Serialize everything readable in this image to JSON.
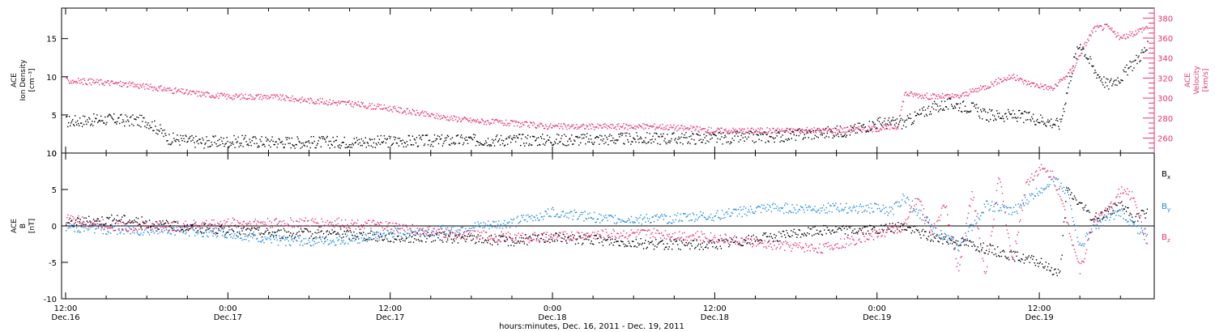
{
  "colors": {
    "black": "#000000",
    "pink": "#e8336b",
    "blue": "#1e88e5"
  },
  "top_panel": {
    "left_axis_label": [
      "ACE",
      "Ion Density",
      "[cm⁻³]"
    ],
    "right_axis_label": [
      "ACE",
      "Velocity",
      "[km/s]"
    ],
    "left_ticks": [
      "0",
      "5",
      "10",
      "15"
    ],
    "right_ticks": [
      "260",
      "280",
      "300",
      "320",
      "340",
      "360",
      "380"
    ]
  },
  "bottom_panel": {
    "axis_label": [
      "ACE",
      "B",
      "[nT]"
    ],
    "ticks": [
      "-10",
      "-5",
      "0",
      "5",
      "10"
    ],
    "legend": [
      {
        "label": "B",
        "sub": "x",
        "color": "#000000"
      },
      {
        "label": "B",
        "sub": "y",
        "color": "#1e88e5"
      },
      {
        "label": "B",
        "sub": "z",
        "color": "#e8336b"
      }
    ]
  },
  "x_axis": {
    "ticks": [
      {
        "time": "12:00",
        "day": "Dec.16"
      },
      {
        "time": "0:00",
        "day": "Dec.17"
      },
      {
        "time": "12:00",
        "day": "Dec.17"
      },
      {
        "time": "0:00",
        "day": "Dec.18"
      },
      {
        "time": "12:00",
        "day": "Dec.18"
      },
      {
        "time": "0:00",
        "day": "Dec.19"
      },
      {
        "time": "12:00",
        "day": "Dec.19"
      }
    ],
    "title": "hours:minutes, Dec. 16, 2011 - Dec. 19, 2011"
  },
  "chart_data": [
    {
      "type": "scatter",
      "panel": "top",
      "x_unit": "hours since 12:00 Dec.16, 2011",
      "xlim": [
        -0.3,
        80.5
      ],
      "left_ylim": [
        0,
        19
      ],
      "right_ylim": [
        245,
        390
      ],
      "series": [
        {
          "axis": "left",
          "color": "#000000",
          "x": [
            0,
            3,
            6,
            7,
            7.5,
            10,
            13,
            16,
            20,
            24,
            28,
            33,
            36,
            40,
            44,
            48,
            52,
            55,
            58,
            60,
            62,
            64,
            65.5,
            67,
            68,
            70,
            72,
            73.5,
            74.5,
            75,
            76,
            77,
            78,
            79,
            80
          ],
          "y": [
            4.2,
            4.5,
            4.2,
            3.0,
            2.0,
            1.5,
            1.6,
            1.5,
            1.5,
            1.6,
            1.7,
            1.8,
            1.8,
            1.9,
            2.0,
            2.0,
            2.2,
            2.6,
            3.0,
            4.0,
            4.0,
            6.0,
            6.5,
            6.0,
            5.0,
            5.0,
            4.5,
            3.8,
            12.0,
            14.5,
            11.0,
            9.0,
            10.0,
            12.0,
            14.0
          ]
        },
        {
          "axis": "right",
          "color": "#e8336b",
          "x": [
            0,
            3,
            6,
            9,
            12,
            15,
            18,
            21,
            24,
            27,
            30,
            33,
            36,
            40,
            44,
            48,
            52,
            56,
            60,
            61.5,
            62,
            64,
            66,
            68,
            69,
            70,
            71,
            73,
            74.5,
            75,
            76,
            77,
            78,
            80
          ],
          "y": [
            318,
            316,
            312,
            306,
            302,
            302,
            298,
            295,
            290,
            283,
            278,
            275,
            272,
            272,
            272,
            268,
            268,
            268,
            270,
            272,
            305,
            302,
            302,
            312,
            318,
            322,
            316,
            310,
            330,
            345,
            370,
            372,
            360,
            372
          ]
        }
      ]
    },
    {
      "type": "scatter",
      "panel": "bottom",
      "x_unit": "hours since 12:00 Dec.16, 2011",
      "xlim": [
        -0.3,
        80.5
      ],
      "ylim": [
        -10,
        10
      ],
      "series": [
        {
          "color": "#000000",
          "x": [
            0,
            4,
            8,
            12,
            16,
            20,
            24,
            28,
            33,
            36,
            40,
            44,
            48,
            52,
            56,
            60,
            62,
            64,
            66,
            68,
            70,
            72,
            73.5,
            74,
            75,
            76,
            77,
            78,
            79,
            80
          ],
          "y": [
            0.5,
            1.0,
            0,
            -0.5,
            -1.0,
            -1.0,
            -1.5,
            -1.5,
            -2.0,
            -1.5,
            -2.0,
            -2.5,
            -2.5,
            -1.5,
            -0.5,
            -0.5,
            0,
            -1.5,
            -2.0,
            -3.0,
            -4.0,
            -5.0,
            -6.5,
            5.0,
            3.0,
            1.0,
            2.0,
            3.0,
            1.0,
            2.0
          ]
        },
        {
          "color": "#1e88e5",
          "x": [
            0,
            4,
            8,
            12,
            16,
            20,
            24,
            28,
            33,
            36,
            38,
            40,
            44,
            48,
            52,
            56,
            60,
            61,
            62,
            64,
            66,
            68,
            70,
            72,
            73,
            74,
            75,
            76,
            77,
            78,
            79,
            80
          ],
          "y": [
            0,
            -0.5,
            -0.5,
            -1.0,
            -2.0,
            -2.0,
            -1.0,
            -0.5,
            0.5,
            2.0,
            1.5,
            1.0,
            1.0,
            1.5,
            2.5,
            2.5,
            2.5,
            2.0,
            4.0,
            0,
            -3.0,
            3.0,
            2.0,
            5.0,
            6.5,
            5.0,
            -3.0,
            0,
            1.0,
            2.0,
            0,
            -1.0
          ]
        },
        {
          "color": "#e8336b",
          "x": [
            0,
            4,
            8,
            12,
            16,
            20,
            24,
            28,
            33,
            36,
            40,
            44,
            48,
            52,
            56,
            60,
            62,
            63,
            64,
            65,
            66,
            67,
            68,
            69,
            70,
            71,
            72,
            73,
            74,
            75,
            76,
            77,
            78,
            79,
            80
          ],
          "y": [
            1.0,
            0,
            0,
            0.5,
            0.5,
            0.5,
            0,
            -1.0,
            -1.5,
            -1.5,
            -1.0,
            -1.0,
            -1.5,
            -2.5,
            -3.0,
            -1.0,
            0,
            4.0,
            -1.0,
            3.0,
            -6.0,
            5.0,
            -7.0,
            7.0,
            -5.0,
            6.0,
            8.0,
            7.0,
            1.0,
            -6.0,
            1.0,
            2.0,
            5.0,
            4.0,
            -3.0
          ]
        }
      ]
    }
  ]
}
